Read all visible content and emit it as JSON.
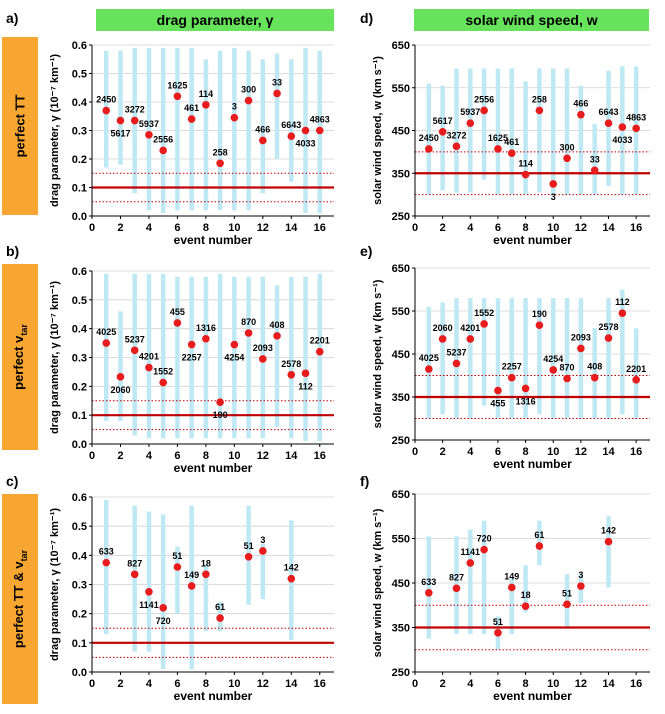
{
  "headers": {
    "left": "drag parameter, γ",
    "right": "solar wind speed, w"
  },
  "rows": [
    {
      "main": "perfect TT",
      "sub": ""
    },
    {
      "main": "perfect v",
      "sub": "tar"
    },
    {
      "main": "perfect TT & v",
      "sub": "tar"
    }
  ],
  "colors": {
    "header": "#66e35a",
    "side": "#f7a632",
    "bar": "#bfe8f5",
    "point": "#e81c1c",
    "refline": "#c00000",
    "grid": "#d0d0d0"
  },
  "chart_data": [
    {
      "id": "a",
      "panel_label": "a)",
      "type": "scatter",
      "xlabel": "event number",
      "ylabel": "drag parameter, γ (10⁻⁷ km⁻¹)",
      "xlim": [
        0,
        17
      ],
      "xticks": [
        0,
        2,
        4,
        6,
        8,
        10,
        12,
        14,
        16
      ],
      "ylim": [
        0,
        0.6
      ],
      "yticks": [
        0,
        0.1,
        0.2,
        0.3,
        0.4,
        0.5,
        0.6
      ],
      "ytick_labels": [
        "0.0",
        "0.1",
        "0.2",
        "0.3",
        "0.4",
        "0.5",
        "0.6"
      ],
      "ref_line": 0.1,
      "ref_dotted": [
        0.05,
        0.15
      ],
      "points": [
        {
          "x": 1,
          "y": 0.37,
          "lo": 0.17,
          "hi": 0.58,
          "label": "2450",
          "pos": "above"
        },
        {
          "x": 2,
          "y": 0.335,
          "lo": 0.18,
          "hi": 0.58,
          "label": "5617",
          "pos": "below"
        },
        {
          "x": 3,
          "y": 0.335,
          "lo": 0.08,
          "hi": 0.59,
          "label": "3272",
          "pos": "above"
        },
        {
          "x": 4,
          "y": 0.285,
          "lo": 0.02,
          "hi": 0.59,
          "label": "5937",
          "pos": "above"
        },
        {
          "x": 5,
          "y": 0.23,
          "lo": 0.01,
          "hi": 0.59,
          "label": "2556",
          "pos": "above"
        },
        {
          "x": 6,
          "y": 0.42,
          "lo": 0.02,
          "hi": 0.59,
          "label": "1625",
          "pos": "above"
        },
        {
          "x": 7,
          "y": 0.34,
          "lo": 0.02,
          "hi": 0.59,
          "label": "461",
          "pos": "above"
        },
        {
          "x": 8,
          "y": 0.39,
          "lo": 0.02,
          "hi": 0.55,
          "label": "114",
          "pos": "above"
        },
        {
          "x": 9,
          "y": 0.185,
          "lo": 0.02,
          "hi": 0.58,
          "label": "258",
          "pos": "above"
        },
        {
          "x": 10,
          "y": 0.345,
          "lo": 0.02,
          "hi": 0.59,
          "label": "3",
          "pos": "above"
        },
        {
          "x": 11,
          "y": 0.405,
          "lo": 0.02,
          "hi": 0.58,
          "label": "300",
          "pos": "above"
        },
        {
          "x": 12,
          "y": 0.265,
          "lo": 0.08,
          "hi": 0.55,
          "label": "466",
          "pos": "above"
        },
        {
          "x": 13,
          "y": 0.43,
          "lo": 0.2,
          "hi": 0.57,
          "label": "33",
          "pos": "above"
        },
        {
          "x": 14,
          "y": 0.28,
          "lo": 0.12,
          "hi": 0.55,
          "label": "6643",
          "pos": "above"
        },
        {
          "x": 15,
          "y": 0.3,
          "lo": 0.01,
          "hi": 0.59,
          "label": "4033",
          "pos": "below"
        },
        {
          "x": 16,
          "y": 0.3,
          "lo": 0.01,
          "hi": 0.58,
          "label": "4863",
          "pos": "above"
        }
      ]
    },
    {
      "id": "d",
      "panel_label": "d)",
      "type": "scatter",
      "xlabel": "event number",
      "ylabel": "solar wind speed, w (km s⁻¹)",
      "xlim": [
        0,
        17
      ],
      "xticks": [
        0,
        2,
        4,
        6,
        8,
        10,
        12,
        14,
        16
      ],
      "ylim": [
        250,
        650
      ],
      "yticks": [
        250,
        350,
        450,
        550,
        650
      ],
      "ytick_labels": [
        "250",
        "350",
        "450",
        "550",
        "650"
      ],
      "ref_line": 350,
      "ref_dotted": [
        300,
        400
      ],
      "points": [
        {
          "x": 1,
          "y": 407,
          "lo": 300,
          "hi": 560,
          "label": "2450",
          "pos": "above"
        },
        {
          "x": 2,
          "y": 447,
          "lo": 310,
          "hi": 555,
          "label": "5617",
          "pos": "above"
        },
        {
          "x": 3,
          "y": 413,
          "lo": 305,
          "hi": 595,
          "label": "3272",
          "pos": "above"
        },
        {
          "x": 4,
          "y": 467,
          "lo": 305,
          "hi": 595,
          "label": "5937",
          "pos": "above"
        },
        {
          "x": 5,
          "y": 497,
          "lo": 335,
          "hi": 595,
          "label": "2556",
          "pos": "above"
        },
        {
          "x": 6,
          "y": 407,
          "lo": 300,
          "hi": 595,
          "label": "1625",
          "pos": "above"
        },
        {
          "x": 7,
          "y": 397,
          "lo": 300,
          "hi": 595,
          "label": "461",
          "pos": "above"
        },
        {
          "x": 8,
          "y": 347,
          "lo": 300,
          "hi": 565,
          "label": "114",
          "pos": "above"
        },
        {
          "x": 9,
          "y": 497,
          "lo": 305,
          "hi": 595,
          "label": "258",
          "pos": "above"
        },
        {
          "x": 10,
          "y": 325,
          "lo": 300,
          "hi": 595,
          "label": "3",
          "pos": "below"
        },
        {
          "x": 11,
          "y": 385,
          "lo": 300,
          "hi": 595,
          "label": "300",
          "pos": "above"
        },
        {
          "x": 12,
          "y": 487,
          "lo": 300,
          "hi": 555,
          "label": "466",
          "pos": "above"
        },
        {
          "x": 13,
          "y": 357,
          "lo": 300,
          "hi": 465,
          "label": "33",
          "pos": "above"
        },
        {
          "x": 14,
          "y": 467,
          "lo": 320,
          "hi": 590,
          "label": "6643",
          "pos": "above"
        },
        {
          "x": 15,
          "y": 458,
          "lo": 300,
          "hi": 600,
          "label": "4033",
          "pos": "below"
        },
        {
          "x": 16,
          "y": 455,
          "lo": 300,
          "hi": 600,
          "label": "4863",
          "pos": "above"
        }
      ]
    },
    {
      "id": "b",
      "panel_label": "b)",
      "type": "scatter",
      "xlabel": "event number",
      "ylabel": "drag parameter, γ (10⁻⁷ km⁻¹)",
      "xlim": [
        0,
        17
      ],
      "xticks": [
        0,
        2,
        4,
        6,
        8,
        10,
        12,
        14,
        16
      ],
      "ylim": [
        0,
        0.6
      ],
      "yticks": [
        0,
        0.1,
        0.2,
        0.3,
        0.4,
        0.5,
        0.6
      ],
      "ytick_labels": [
        "0.0",
        "0.1",
        "0.2",
        "0.3",
        "0.4",
        "0.5",
        "0.6"
      ],
      "ref_line": 0.1,
      "ref_dotted": [
        0.05,
        0.15
      ],
      "points": [
        {
          "x": 1,
          "y": 0.35,
          "lo": 0.08,
          "hi": 0.59,
          "label": "4025",
          "pos": "above"
        },
        {
          "x": 2,
          "y": 0.233,
          "lo": 0.08,
          "hi": 0.46,
          "label": "2060",
          "pos": "below"
        },
        {
          "x": 3,
          "y": 0.325,
          "lo": 0.03,
          "hi": 0.59,
          "label": "5237",
          "pos": "above"
        },
        {
          "x": 4,
          "y": 0.265,
          "lo": 0.02,
          "hi": 0.59,
          "label": "4201",
          "pos": "above"
        },
        {
          "x": 5,
          "y": 0.213,
          "lo": 0.02,
          "hi": 0.59,
          "label": "1552",
          "pos": "above"
        },
        {
          "x": 6,
          "y": 0.42,
          "lo": 0.02,
          "hi": 0.58,
          "label": "455",
          "pos": "above"
        },
        {
          "x": 7,
          "y": 0.345,
          "lo": 0.02,
          "hi": 0.58,
          "label": "2257",
          "pos": "below"
        },
        {
          "x": 8,
          "y": 0.365,
          "lo": 0.02,
          "hi": 0.58,
          "label": "1316",
          "pos": "above"
        },
        {
          "x": 9,
          "y": 0.145,
          "lo": 0.02,
          "hi": 0.59,
          "label": "190",
          "pos": "below"
        },
        {
          "x": 10,
          "y": 0.345,
          "lo": 0.02,
          "hi": 0.58,
          "label": "4254",
          "pos": "below"
        },
        {
          "x": 11,
          "y": 0.385,
          "lo": 0.02,
          "hi": 0.58,
          "label": "870",
          "pos": "above"
        },
        {
          "x": 12,
          "y": 0.295,
          "lo": 0.02,
          "hi": 0.58,
          "label": "2093",
          "pos": "above"
        },
        {
          "x": 13,
          "y": 0.375,
          "lo": 0.06,
          "hi": 0.55,
          "label": "408",
          "pos": "above"
        },
        {
          "x": 14,
          "y": 0.24,
          "lo": 0.02,
          "hi": 0.58,
          "label": "2578",
          "pos": "above"
        },
        {
          "x": 15,
          "y": 0.245,
          "lo": 0.01,
          "hi": 0.58,
          "label": "112",
          "pos": "below"
        },
        {
          "x": 16,
          "y": 0.32,
          "lo": 0.01,
          "hi": 0.59,
          "label": "2201",
          "pos": "above"
        }
      ]
    },
    {
      "id": "e",
      "panel_label": "e)",
      "type": "scatter",
      "xlabel": "event number",
      "ylabel": "solar wind speed, w (km s⁻¹)",
      "xlim": [
        0,
        17
      ],
      "xticks": [
        0,
        2,
        4,
        6,
        8,
        10,
        12,
        14,
        16
      ],
      "ylim": [
        250,
        650
      ],
      "yticks": [
        250,
        350,
        450,
        550,
        650
      ],
      "ytick_labels": [
        "250",
        "350",
        "450",
        "550",
        "650"
      ],
      "ref_line": 350,
      "ref_dotted": [
        300,
        400
      ],
      "points": [
        {
          "x": 1,
          "y": 415,
          "lo": 300,
          "hi": 560,
          "label": "4025",
          "pos": "above"
        },
        {
          "x": 2,
          "y": 485,
          "lo": 310,
          "hi": 570,
          "label": "2060",
          "pos": "above"
        },
        {
          "x": 3,
          "y": 428,
          "lo": 300,
          "hi": 580,
          "label": "5237",
          "pos": "above"
        },
        {
          "x": 4,
          "y": 485,
          "lo": 300,
          "hi": 580,
          "label": "4201",
          "pos": "above"
        },
        {
          "x": 5,
          "y": 520,
          "lo": 330,
          "hi": 580,
          "label": "1552",
          "pos": "above"
        },
        {
          "x": 6,
          "y": 365,
          "lo": 300,
          "hi": 580,
          "label": "455",
          "pos": "below"
        },
        {
          "x": 7,
          "y": 395,
          "lo": 300,
          "hi": 580,
          "label": "2257",
          "pos": "above"
        },
        {
          "x": 8,
          "y": 370,
          "lo": 300,
          "hi": 580,
          "label": "1316",
          "pos": "below"
        },
        {
          "x": 9,
          "y": 517,
          "lo": 310,
          "hi": 580,
          "label": "190",
          "pos": "above"
        },
        {
          "x": 10,
          "y": 413,
          "lo": 300,
          "hi": 580,
          "label": "4254",
          "pos": "above"
        },
        {
          "x": 11,
          "y": 393,
          "lo": 300,
          "hi": 580,
          "label": "870",
          "pos": "above"
        },
        {
          "x": 12,
          "y": 463,
          "lo": 300,
          "hi": 580,
          "label": "2093",
          "pos": "above"
        },
        {
          "x": 13,
          "y": 395,
          "lo": 300,
          "hi": 510,
          "label": "408",
          "pos": "above"
        },
        {
          "x": 14,
          "y": 487,
          "lo": 300,
          "hi": 580,
          "label": "2578",
          "pos": "above"
        },
        {
          "x": 15,
          "y": 545,
          "lo": 310,
          "hi": 600,
          "label": "112",
          "pos": "above"
        },
        {
          "x": 16,
          "y": 390,
          "lo": 300,
          "hi": 510,
          "label": "2201",
          "pos": "above"
        }
      ]
    },
    {
      "id": "c",
      "panel_label": "c)",
      "type": "scatter",
      "xlabel": "event number",
      "ylabel": "drag parameter, γ (10⁻⁷ km⁻¹)",
      "xlim": [
        0,
        17
      ],
      "xticks": [
        0,
        2,
        4,
        6,
        8,
        10,
        12,
        14,
        16
      ],
      "ylim": [
        0,
        0.6
      ],
      "yticks": [
        0,
        0.1,
        0.2,
        0.3,
        0.4,
        0.5,
        0.6
      ],
      "ytick_labels": [
        "0.0",
        "0.1",
        "0.2",
        "0.3",
        "0.4",
        "0.5",
        "0.6"
      ],
      "ref_line": 0.1,
      "ref_dotted": [
        0.05,
        0.15
      ],
      "points": [
        {
          "x": 1,
          "y": 0.375,
          "lo": 0.13,
          "hi": 0.59,
          "label": "633",
          "pos": "above"
        },
        {
          "x": 3,
          "y": 0.335,
          "lo": 0.07,
          "hi": 0.57,
          "label": "827",
          "pos": "above"
        },
        {
          "x": 4,
          "y": 0.275,
          "lo": 0.07,
          "hi": 0.55,
          "label": "1141",
          "pos": "below"
        },
        {
          "x": 5,
          "y": 0.22,
          "lo": 0.01,
          "hi": 0.54,
          "label": "720",
          "pos": "below"
        },
        {
          "x": 6,
          "y": 0.36,
          "lo": 0.2,
          "hi": 0.43,
          "label": "51",
          "pos": "above"
        },
        {
          "x": 7,
          "y": 0.295,
          "lo": 0.01,
          "hi": 0.57,
          "label": "149",
          "pos": "above"
        },
        {
          "x": 8,
          "y": 0.335,
          "lo": 0.14,
          "hi": 0.37,
          "label": "18",
          "pos": "above"
        },
        {
          "x": 9,
          "y": 0.185,
          "lo": 0.14,
          "hi": 0.24,
          "label": "61",
          "pos": "above"
        },
        {
          "x": 11,
          "y": 0.395,
          "lo": 0.23,
          "hi": 0.57,
          "label": "51",
          "pos": "above"
        },
        {
          "x": 12,
          "y": 0.415,
          "lo": 0.25,
          "hi": 0.44,
          "label": "3",
          "pos": "above"
        },
        {
          "x": 14,
          "y": 0.32,
          "lo": 0.11,
          "hi": 0.52,
          "label": "142",
          "pos": "above"
        }
      ]
    },
    {
      "id": "f",
      "panel_label": "f)",
      "type": "scatter",
      "xlabel": "event number",
      "ylabel": "solar wind speed, w (km s⁻¹)",
      "xlim": [
        0,
        17
      ],
      "xticks": [
        0,
        2,
        4,
        6,
        8,
        10,
        12,
        14,
        16
      ],
      "ylim": [
        250,
        650
      ],
      "yticks": [
        250,
        350,
        450,
        550,
        650
      ],
      "ytick_labels": [
        "250",
        "350",
        "450",
        "550",
        "650"
      ],
      "ref_line": 350,
      "ref_dotted": [
        300,
        400
      ],
      "points": [
        {
          "x": 1,
          "y": 428,
          "lo": 325,
          "hi": 555,
          "label": "633",
          "pos": "above"
        },
        {
          "x": 3,
          "y": 438,
          "lo": 335,
          "hi": 555,
          "label": "827",
          "pos": "above"
        },
        {
          "x": 4,
          "y": 495,
          "lo": 335,
          "hi": 570,
          "label": "1141",
          "pos": "above"
        },
        {
          "x": 5,
          "y": 525,
          "lo": 335,
          "hi": 590,
          "label": "720",
          "pos": "above"
        },
        {
          "x": 6,
          "y": 338,
          "lo": 300,
          "hi": 375,
          "label": "51",
          "pos": "above"
        },
        {
          "x": 7,
          "y": 440,
          "lo": 335,
          "hi": 460,
          "label": "149",
          "pos": "above"
        },
        {
          "x": 8,
          "y": 398,
          "lo": 385,
          "hi": 490,
          "label": "18",
          "pos": "above"
        },
        {
          "x": 9,
          "y": 533,
          "lo": 490,
          "hi": 590,
          "label": "61",
          "pos": "above"
        },
        {
          "x": 11,
          "y": 402,
          "lo": 350,
          "hi": 470,
          "label": "51",
          "pos": "above"
        },
        {
          "x": 12,
          "y": 443,
          "lo": 405,
          "hi": 470,
          "label": "3",
          "pos": "above"
        },
        {
          "x": 14,
          "y": 543,
          "lo": 440,
          "hi": 600,
          "label": "142",
          "pos": "above"
        }
      ]
    }
  ]
}
